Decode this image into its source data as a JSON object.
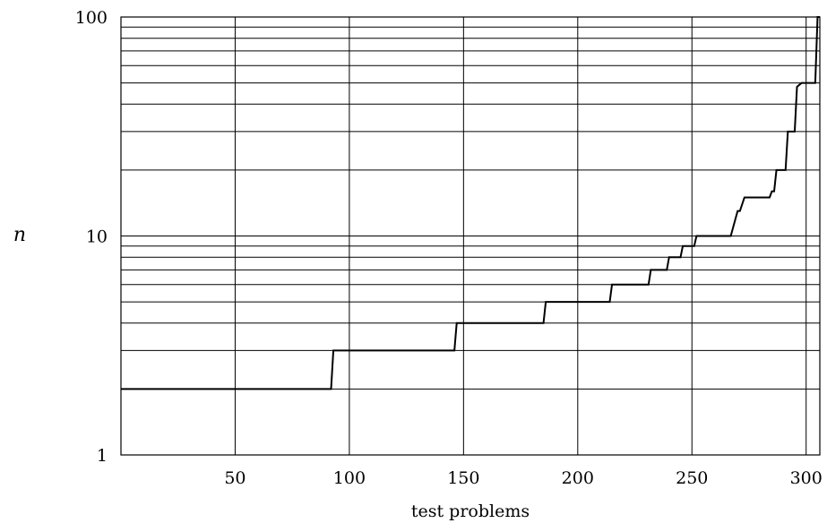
{
  "chart_data": {
    "type": "line",
    "title": "",
    "xlabel": "test problems",
    "ylabel": "n",
    "xscale": "linear",
    "yscale": "log",
    "xlim": [
      0,
      306
    ],
    "ylim": [
      1,
      100
    ],
    "grid": true,
    "xticks": [
      50,
      100,
      150,
      200,
      250,
      300
    ],
    "xtick_labels": [
      "50",
      "100",
      "150",
      "200",
      "250",
      "300"
    ],
    "yticks": [
      1,
      10,
      100
    ],
    "ytick_labels": [
      "1",
      "10",
      "100"
    ],
    "series": [
      {
        "step": "post",
        "x": [
          0,
          92,
          93,
          146,
          147,
          185,
          186,
          214,
          215,
          231,
          232,
          239,
          240,
          245,
          246,
          248,
          249,
          251,
          252,
          267,
          270,
          271,
          273,
          284,
          285,
          286,
          287,
          291,
          292,
          295,
          296,
          298,
          299,
          304,
          305,
          306
        ],
        "y": [
          2,
          2,
          3,
          3,
          4,
          4,
          5,
          5,
          6,
          6,
          7,
          7,
          8,
          8,
          9,
          9,
          9,
          9,
          10,
          10,
          13,
          13,
          15,
          15,
          16,
          16,
          20,
          20,
          30,
          30,
          48,
          50,
          50,
          50,
          100,
          100
        ]
      }
    ]
  }
}
